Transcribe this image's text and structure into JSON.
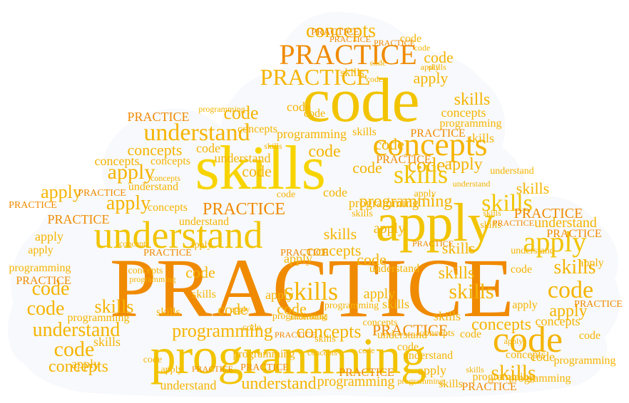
{
  "words": [
    "PRACTICE",
    "code",
    "skills",
    "programming",
    "apply",
    "understand",
    "concepts"
  ],
  "colors": {
    "background": "#ffffff",
    "cloud": "#f7f9fc",
    "orange": "#f08a00",
    "amber": "#f6b400",
    "gold": "#f2c400",
    "yellow": "#f7d400",
    "light": "#f8cf5a"
  }
}
